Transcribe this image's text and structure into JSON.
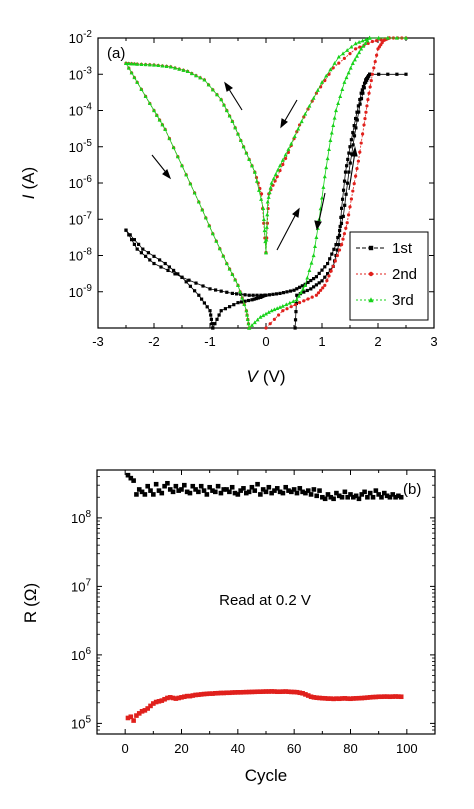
{
  "chart_data": [
    {
      "panel_label": "(a)",
      "type": "line",
      "xlabel_var": "V",
      "xlabel_unit": "(V)",
      "ylabel_var": "I",
      "ylabel_unit": "(A)",
      "xlim": [
        -3,
        3
      ],
      "ylim": [
        1e-10,
        0.01
      ],
      "y_scale": "log",
      "x_ticks": [
        "-3",
        "-2",
        "-1",
        "0",
        "1",
        "2",
        "3"
      ],
      "y_ticks": [
        {
          "value": 0.01,
          "base": "10",
          "exp": "-2"
        },
        {
          "value": 0.001,
          "base": "10",
          "exp": "-3"
        },
        {
          "value": 0.0001,
          "base": "10",
          "exp": "-4"
        },
        {
          "value": 1e-05,
          "base": "10",
          "exp": "-5"
        },
        {
          "value": 1e-06,
          "base": "10",
          "exp": "-6"
        },
        {
          "value": 1e-07,
          "base": "10",
          "exp": "-7"
        },
        {
          "value": 1e-08,
          "base": "10",
          "exp": "-8"
        },
        {
          "value": 1e-09,
          "base": "10",
          "exp": "-9"
        }
      ],
      "legend_position": "lower-right",
      "series": [
        {
          "name": "1st",
          "color": "#000000",
          "marker": "square",
          "segments": [
            [
              [
                0,
                8e-10
              ],
              [
                0.25,
                9e-10
              ],
              [
                0.5,
                1.1e-09
              ],
              [
                0.7,
                1.6e-09
              ],
              [
                0.9,
                2.6e-09
              ],
              [
                1.1,
                6e-09
              ],
              [
                1.25,
                2e-08
              ],
              [
                1.38,
                1.2e-07
              ],
              [
                1.48,
                2e-06
              ],
              [
                1.58,
                2e-05
              ],
              [
                1.68,
                0.00015
              ],
              [
                1.78,
                0.0006
              ],
              [
                1.85,
                0.001
              ]
            ],
            [
              [
                1.85,
                0.001
              ],
              [
                2.5,
                0.001
              ]
            ],
            [
              [
                1.85,
                0.001
              ],
              [
                1.78,
                0.0007
              ],
              [
                1.7,
                0.0003
              ],
              [
                1.6,
                6e-05
              ],
              [
                1.5,
                1e-05
              ],
              [
                1.42,
                2e-06
              ],
              [
                1.35,
                2e-07
              ],
              [
                1.3,
                2e-08
              ],
              [
                1.2,
                5e-09
              ],
              [
                1.0,
                2e-09
              ],
              [
                0.8,
                1.2e-09
              ],
              [
                0.55,
                8e-10
              ],
              [
                0.52,
                1e-10
              ]
            ],
            [
              [
                -0.02,
                8e-10
              ],
              [
                -0.3,
                8e-10
              ],
              [
                -0.6,
                9e-10
              ],
              [
                -1.0,
                1.2e-09
              ],
              [
                -1.5,
                2.5e-09
              ],
              [
                -2.0,
                6e-09
              ],
              [
                -2.3,
                1.5e-08
              ],
              [
                -2.5,
                5e-08
              ]
            ],
            [
              [
                -2.5,
                5e-08
              ],
              [
                -2.2,
                1.5e-08
              ],
              [
                -1.8,
                6e-09
              ],
              [
                -1.5,
                2.5e-09
              ],
              [
                -1.2,
                8e-10
              ],
              [
                -1.0,
                3e-10
              ],
              [
                -0.95,
                1e-10
              ]
            ],
            [
              [
                -0.95,
                1e-10
              ],
              [
                -0.8,
                3e-10
              ],
              [
                -0.5,
                5e-10
              ],
              [
                -0.25,
                6e-10
              ],
              [
                -0.1,
                7e-10
              ],
              [
                -0.02,
                8e-10
              ]
            ]
          ]
        },
        {
          "name": "2nd",
          "color": "#e0201c",
          "marker": "circle",
          "segments": [
            [
              [
                0,
                1e-10
              ],
              [
                0.3,
                3e-10
              ],
              [
                0.6,
                5e-10
              ],
              [
                0.9,
                8e-10
              ],
              [
                1.05,
                1.5e-09
              ],
              [
                1.2,
                5e-09
              ],
              [
                1.35,
                2e-08
              ],
              [
                1.45,
                8e-08
              ],
              [
                1.55,
                6e-07
              ],
              [
                1.65,
                4e-06
              ],
              [
                1.75,
                4e-05
              ],
              [
                1.82,
                0.0002
              ],
              [
                1.9,
                0.001
              ],
              [
                2.0,
                0.005
              ],
              [
                2.1,
                0.0085
              ],
              [
                2.2,
                0.01
              ]
            ],
            [
              [
                2.2,
                0.01
              ],
              [
                2.5,
                0.01
              ]
            ],
            [
              [
                2.2,
                0.01
              ],
              [
                1.9,
                0.008
              ],
              [
                1.6,
                0.005
              ],
              [
                1.2,
                0.0015
              ],
              [
                0.9,
                0.0003
              ],
              [
                0.6,
                4e-05
              ],
              [
                0.4,
                7e-06
              ],
              [
                0.2,
                1.5e-06
              ],
              [
                0.05,
                5e-07
              ],
              [
                0,
                1.2e-08
              ]
            ],
            [
              [
                0,
                1.2e-08
              ],
              [
                -0.08,
                5e-07
              ],
              [
                -0.2,
                2e-06
              ],
              [
                -0.4,
                1e-05
              ],
              [
                -0.6,
                5e-05
              ],
              [
                -0.8,
                0.0002
              ],
              [
                -1.1,
                0.0007
              ],
              [
                -1.4,
                0.0012
              ],
              [
                -1.7,
                0.0016
              ],
              [
                -2.0,
                0.0018
              ],
              [
                -2.3,
                0.0019
              ],
              [
                -2.5,
                0.002
              ]
            ],
            [
              [
                -2.5,
                0.002
              ],
              [
                -2.3,
                0.0006
              ],
              [
                -2.0,
                0.0001
              ],
              [
                -1.8,
                3e-05
              ],
              [
                -1.5,
                3e-06
              ],
              [
                -1.2,
                3e-07
              ],
              [
                -0.95,
                4e-08
              ],
              [
                -0.7,
                6e-09
              ],
              [
                -0.5,
                1.5e-09
              ],
              [
                -0.35,
                3e-10
              ],
              [
                -0.3,
                1e-10
              ]
            ]
          ]
        },
        {
          "name": "3rd",
          "color": "#17d21a",
          "marker": "triangle",
          "segments": [
            [
              [
                -0.3,
                1e-10
              ],
              [
                -0.1,
                2e-10
              ],
              [
                0.1,
                3e-10
              ],
              [
                0.3,
                4e-10
              ],
              [
                0.55,
                6e-10
              ],
              [
                0.7,
                1.5e-09
              ],
              [
                0.85,
                1e-08
              ],
              [
                0.95,
                1e-07
              ],
              [
                1.05,
                1.5e-06
              ],
              [
                1.15,
                1.5e-05
              ],
              [
                1.25,
                0.0001
              ],
              [
                1.4,
                0.0006
              ],
              [
                1.55,
                0.002
              ],
              [
                1.7,
                0.005
              ],
              [
                1.85,
                0.01
              ]
            ],
            [
              [
                1.85,
                0.01
              ],
              [
                2.5,
                0.01
              ]
            ],
            [
              [
                1.85,
                0.01
              ],
              [
                1.6,
                0.007
              ],
              [
                1.3,
                0.003
              ],
              [
                1.0,
                0.0006
              ],
              [
                0.7,
                8e-05
              ],
              [
                0.45,
                1.2e-05
              ],
              [
                0.25,
                3e-06
              ],
              [
                0.1,
                1e-06
              ],
              [
                0.03,
                3e-07
              ],
              [
                0,
                1.2e-08
              ]
            ],
            [
              [
                0,
                1.2e-08
              ],
              [
                -0.05,
                2e-07
              ],
              [
                -0.2,
                2e-06
              ],
              [
                -0.4,
                1e-05
              ],
              [
                -0.6,
                5e-05
              ],
              [
                -0.8,
                0.0002
              ],
              [
                -1.1,
                0.0007
              ],
              [
                -1.4,
                0.0012
              ],
              [
                -1.7,
                0.0016
              ],
              [
                -2.0,
                0.0018
              ],
              [
                -2.3,
                0.0019
              ],
              [
                -2.5,
                0.002
              ]
            ],
            [
              [
                -2.5,
                0.002
              ],
              [
                -2.3,
                0.0006
              ],
              [
                -2.0,
                0.0001
              ],
              [
                -1.8,
                3e-05
              ],
              [
                -1.5,
                3e-06
              ],
              [
                -1.2,
                3e-07
              ],
              [
                -0.95,
                4e-08
              ],
              [
                -0.7,
                6e-09
              ],
              [
                -0.5,
                1.5e-09
              ],
              [
                -0.35,
                3e-10
              ],
              [
                -0.3,
                1e-10
              ]
            ]
          ]
        }
      ]
    },
    {
      "panel_label": "(b)",
      "type": "scatter",
      "xlabel": "Cycle",
      "ylabel_var": "R",
      "ylabel_unit": "(Ω)",
      "annotation": "Read at 0.2 V",
      "xlim": [
        -10,
        110
      ],
      "ylim": [
        70000,
        500000000
      ],
      "y_scale": "log",
      "x_ticks": [
        "0",
        "20",
        "40",
        "60",
        "80",
        "100"
      ],
      "y_ticks": [
        {
          "value": 100000000,
          "base": "10",
          "exp": "8"
        },
        {
          "value": 10000000,
          "base": "10",
          "exp": "7"
        },
        {
          "value": 1000000,
          "base": "10",
          "exp": "6"
        },
        {
          "value": 100000,
          "base": "10",
          "exp": "5"
        }
      ],
      "series": [
        {
          "name": "",
          "color": "#000000",
          "marker": "square",
          "values": [
            420000000.0,
            380000000.0,
            350000000.0,
            220000000.0,
            260000000.0,
            240000000.0,
            220000000.0,
            290000000.0,
            250000000.0,
            220000000.0,
            310000000.0,
            250000000.0,
            230000000.0,
            290000000.0,
            320000000.0,
            260000000.0,
            240000000.0,
            290000000.0,
            250000000.0,
            260000000.0,
            300000000.0,
            240000000.0,
            230000000.0,
            290000000.0,
            260000000.0,
            240000000.0,
            290000000.0,
            250000000.0,
            220000000.0,
            280000000.0,
            250000000.0,
            240000000.0,
            290000000.0,
            230000000.0,
            260000000.0,
            260000000.0,
            240000000.0,
            280000000.0,
            230000000.0,
            220000000.0,
            250000000.0,
            270000000.0,
            230000000.0,
            240000000.0,
            280000000.0,
            250000000.0,
            310000000.0,
            220000000.0,
            260000000.0,
            240000000.0,
            280000000.0,
            230000000.0,
            250000000.0,
            270000000.0,
            240000000.0,
            230000000.0,
            280000000.0,
            250000000.0,
            240000000.0,
            260000000.0,
            230000000.0,
            270000000.0,
            240000000.0,
            230000000.0,
            250000000.0,
            220000000.0,
            260000000.0,
            210000000.0,
            250000000.0,
            200000000.0,
            190000000.0,
            220000000.0,
            200000000.0,
            190000000.0,
            230000000.0,
            210000000.0,
            200000000.0,
            240000000.0,
            200000000.0,
            220000000.0,
            200000000.0,
            210000000.0,
            190000000.0,
            220000000.0,
            240000000.0,
            200000000.0,
            230000000.0,
            200000000.0,
            250000000.0,
            220000000.0,
            200000000.0,
            230000000.0,
            210000000.0,
            200000000.0,
            220000000.0,
            200000000.0,
            210000000.0,
            200000000.0
          ]
        },
        {
          "name": "",
          "color": "#e0201c",
          "marker": "square",
          "values": [
            120000,
            125000,
            110000,
            130000,
            140000,
            150000,
            155000,
            165000,
            180000,
            195000,
            205000,
            210000,
            215000,
            225000,
            235000,
            240000,
            235000,
            230000,
            235000,
            240000,
            245000,
            250000,
            250000,
            255000,
            260000,
            262000,
            265000,
            268000,
            270000,
            272000,
            272000,
            275000,
            276000,
            278000,
            278000,
            280000,
            280000,
            282000,
            283000,
            284000,
            284000,
            285000,
            286000,
            287000,
            288000,
            289000,
            290000,
            290000,
            291000,
            292000,
            292000,
            293000,
            292000,
            290000,
            290000,
            291000,
            292000,
            290000,
            288000,
            287000,
            285000,
            280000,
            275000,
            265000,
            255000,
            245000,
            240000,
            237000,
            235000,
            233000,
            232000,
            230000,
            230000,
            228000,
            230000,
            229000,
            231000,
            232000,
            230000,
            229000,
            231000,
            232000,
            233000,
            234000,
            236000,
            238000,
            240000,
            242000,
            243000,
            245000,
            245000,
            246000,
            246000,
            245000,
            246000,
            247000,
            246000,
            245000
          ]
        }
      ]
    }
  ]
}
